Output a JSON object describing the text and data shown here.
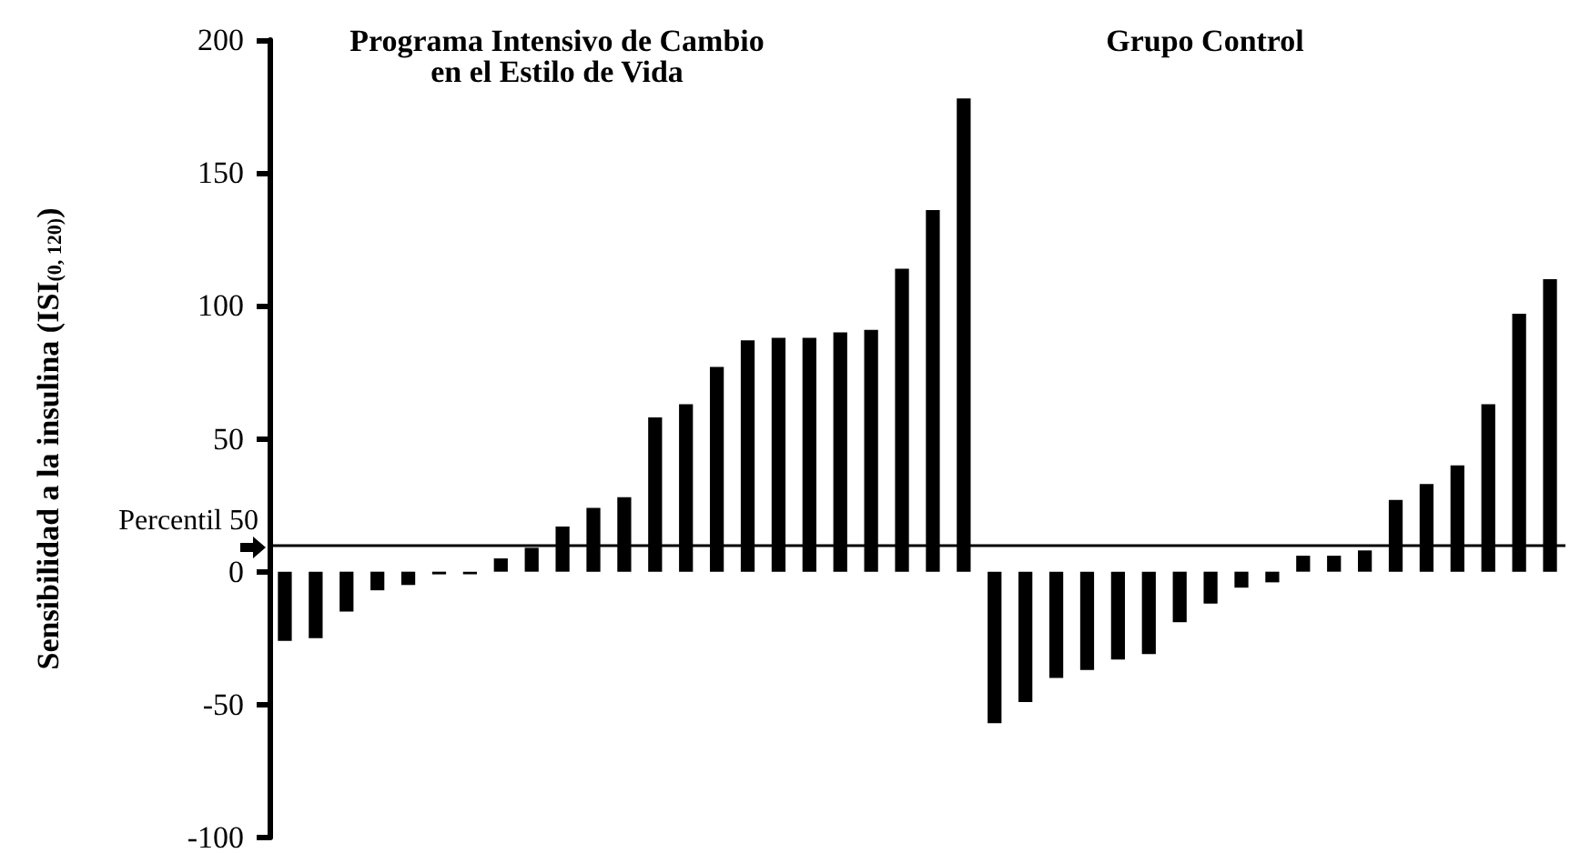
{
  "chart_data": {
    "type": "bar",
    "ylabel": "Sensibilidad a la insulina (ISI$_{(0, 120)}$)",
    "annotations": [
      "Programa Intensivo de Cambio\nen el Estilo de Vida",
      "Grupo Control"
    ],
    "categories": [
      null,
      null,
      null,
      null,
      null,
      null,
      null,
      null,
      null,
      null,
      null,
      null,
      null,
      null,
      null,
      null,
      null,
      null,
      null,
      null,
      null,
      null,
      null,
      null,
      null,
      null,
      null,
      null,
      null,
      null,
      null,
      null,
      null,
      null,
      null,
      null,
      null,
      null,
      null,
      null,
      null,
      null
    ],
    "series": [
      {
        "color": "#000000",
        "values": [
          -26,
          -25,
          -15,
          -7,
          -5,
          -1,
          -1,
          5,
          9,
          17,
          24,
          28,
          58,
          63,
          77,
          87,
          88,
          88,
          90,
          91,
          114,
          136,
          178,
          -57,
          -49,
          -40,
          -37,
          -33,
          -31,
          -19,
          -12,
          -6,
          -4,
          6,
          6,
          8,
          27,
          33,
          40,
          63,
          97,
          110
        ]
      }
    ],
    "ylim": [
      -100,
      200
    ],
    "yticks": [
      -100,
      -50,
      0,
      50,
      100,
      150,
      200
    ],
    "ref_lines": [
      {
        "axis": "y",
        "value": 10,
        "label": "Percentil 50",
        "color": "#000000"
      }
    ],
    "grid": false
  }
}
